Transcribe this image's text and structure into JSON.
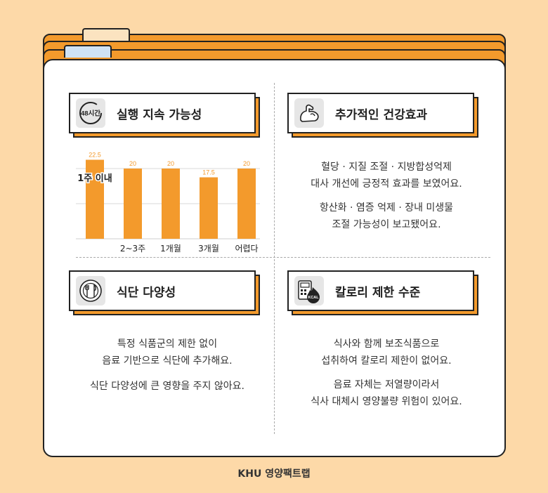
{
  "colors": {
    "accent": "#F39A2C",
    "background": "#FDD9A8",
    "panel": "#FFFFFF",
    "outline": "#222222"
  },
  "sections": {
    "sustainability": {
      "title": "실행 지속 가능성",
      "icon": "48-hours-clock-icon",
      "icon_text": "48시간"
    },
    "health": {
      "title": "추가적인 건강효과",
      "icon": "flexed-arm-icon",
      "lines1": [
        "혈당 · 지질 조절 · 지방합성억제",
        "대사 개선에 긍정적 효과를 보였어요."
      ],
      "lines2": [
        "항산화 · 염증 억제 · 장내 미생물",
        "조절 가능성이 보고됐어요."
      ]
    },
    "diversity": {
      "title": "식단 다양성",
      "icon": "fork-knife-plate-icon",
      "lines1": [
        "특정 식품군의 제한 없이",
        "음료 기반으로 식단에 추가해요."
      ],
      "lines2": [
        "식단 다양성에 큰 영향을 주지 않아요."
      ]
    },
    "calorie": {
      "title": "칼로리 제한 수준",
      "icon": "kcal-scale-icon",
      "icon_text": "KCAL",
      "lines1": [
        "식사와 함께 보조식품으로",
        "섭취하여 칼로리 제한이 없어요."
      ],
      "lines2": [
        "음료 자체는 저열량이라서",
        "식사 대체시 영양불량 위험이 있어요."
      ]
    }
  },
  "chart_data": {
    "type": "bar",
    "categories": [
      "1주 이내",
      "2~3주",
      "1개월",
      "3개월",
      "어렵다"
    ],
    "values": [
      22.5,
      20,
      20,
      17.5,
      20
    ],
    "value_labels": [
      "22.5",
      "20",
      "20",
      "17.5",
      "20"
    ],
    "ylim": [
      0,
      25
    ],
    "grid": true,
    "bar_color": "#F39A2C"
  },
  "footer": "KHU 영양팩트랩"
}
